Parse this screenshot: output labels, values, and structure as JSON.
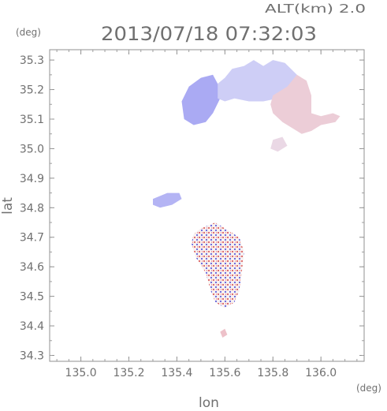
{
  "header": {
    "altitude_label": "ALT(km)  2.0",
    "timestamp": "2013/07/18 07:32:03"
  },
  "chart_data": {
    "type": "heatmap",
    "title": "2013/07/18 07:32:03",
    "xlabel": "lon",
    "ylabel": "lat",
    "xunit": "(deg)",
    "yunit": "(deg)",
    "xlim": [
      134.87,
      136.18
    ],
    "ylim": [
      34.28,
      35.335
    ],
    "x_ticks": [
      135.0,
      135.2,
      135.4,
      135.6,
      135.8,
      136.0
    ],
    "x_tick_labels": [
      "135.0",
      "135.2",
      "135.4",
      "135.6",
      "135.8",
      "136.0"
    ],
    "y_ticks": [
      34.3,
      34.4,
      34.5,
      34.6,
      34.7,
      34.8,
      34.9,
      35.0,
      35.1,
      35.2,
      35.3
    ],
    "y_tick_labels": [
      "34.3",
      "34.4",
      "34.5",
      "34.6",
      "34.7",
      "34.8",
      "34.9",
      "35.0",
      "35.1",
      "35.2",
      "35.3"
    ],
    "grid": false,
    "colors": {
      "negative": "#8080f0",
      "neutral": "#e8e8f8",
      "positive": "#f29a9a"
    },
    "regions": [
      {
        "id": "north-blue-west",
        "polygon": [
          [
            135.42,
            35.16
          ],
          [
            135.45,
            35.21
          ],
          [
            135.5,
            35.24
          ],
          [
            135.55,
            35.25
          ],
          [
            135.57,
            35.22
          ],
          [
            135.58,
            35.17
          ],
          [
            135.55,
            35.12
          ],
          [
            135.52,
            35.09
          ],
          [
            135.47,
            35.08
          ],
          [
            135.43,
            35.1
          ]
        ],
        "value": -0.6
      },
      {
        "id": "north-blue-east",
        "polygon": [
          [
            135.57,
            35.22
          ],
          [
            135.6,
            35.24
          ],
          [
            135.63,
            35.27
          ],
          [
            135.68,
            35.28
          ],
          [
            135.72,
            35.3
          ],
          [
            135.76,
            35.28
          ],
          [
            135.8,
            35.3
          ],
          [
            135.85,
            35.29
          ],
          [
            135.9,
            35.25
          ],
          [
            135.86,
            35.2
          ],
          [
            135.82,
            35.17
          ],
          [
            135.76,
            35.16
          ],
          [
            135.7,
            35.16
          ],
          [
            135.64,
            35.17
          ],
          [
            135.6,
            35.16
          ],
          [
            135.57,
            35.17
          ]
        ],
        "value": -0.25
      },
      {
        "id": "north-red",
        "polygon": [
          [
            135.8,
            35.18
          ],
          [
            135.86,
            35.21
          ],
          [
            135.9,
            35.25
          ],
          [
            135.94,
            35.23
          ],
          [
            135.96,
            35.18
          ],
          [
            135.96,
            35.12
          ],
          [
            136.0,
            35.11
          ],
          [
            136.05,
            35.12
          ],
          [
            136.08,
            35.11
          ],
          [
            136.06,
            35.09
          ],
          [
            136.0,
            35.08
          ],
          [
            135.96,
            35.06
          ],
          [
            135.92,
            35.05
          ],
          [
            135.88,
            35.07
          ],
          [
            135.84,
            35.09
          ],
          [
            135.8,
            35.12
          ],
          [
            135.79,
            35.15
          ]
        ],
        "value": 0.35
      },
      {
        "id": "mid-cluster-east",
        "polygon": [
          [
            135.8,
            35.03
          ],
          [
            135.84,
            35.04
          ],
          [
            135.86,
            35.01
          ],
          [
            135.82,
            34.99
          ],
          [
            135.79,
            35.0
          ]
        ],
        "value": 0.2
      },
      {
        "id": "west-blue-patch",
        "polygon": [
          [
            135.3,
            34.83
          ],
          [
            135.36,
            34.85
          ],
          [
            135.41,
            34.85
          ],
          [
            135.42,
            34.83
          ],
          [
            135.38,
            34.81
          ],
          [
            135.33,
            34.8
          ],
          [
            135.3,
            34.81
          ]
        ],
        "value": -0.5
      },
      {
        "id": "south-cluster",
        "polygon": [
          [
            135.5,
            34.73
          ],
          [
            135.56,
            34.75
          ],
          [
            135.62,
            34.72
          ],
          [
            135.66,
            34.7
          ],
          [
            135.68,
            34.65
          ],
          [
            135.67,
            34.58
          ],
          [
            135.66,
            34.52
          ],
          [
            135.64,
            34.48
          ],
          [
            135.6,
            34.46
          ],
          [
            135.56,
            34.48
          ],
          [
            135.54,
            34.52
          ],
          [
            135.52,
            34.58
          ],
          [
            135.48,
            34.63
          ],
          [
            135.46,
            34.68
          ],
          [
            135.47,
            34.71
          ]
        ],
        "value": 0.05
      },
      {
        "id": "south-tip",
        "polygon": [
          [
            135.58,
            34.38
          ],
          [
            135.6,
            34.39
          ],
          [
            135.61,
            34.37
          ],
          [
            135.59,
            34.36
          ]
        ],
        "value": 0.5
      }
    ]
  }
}
